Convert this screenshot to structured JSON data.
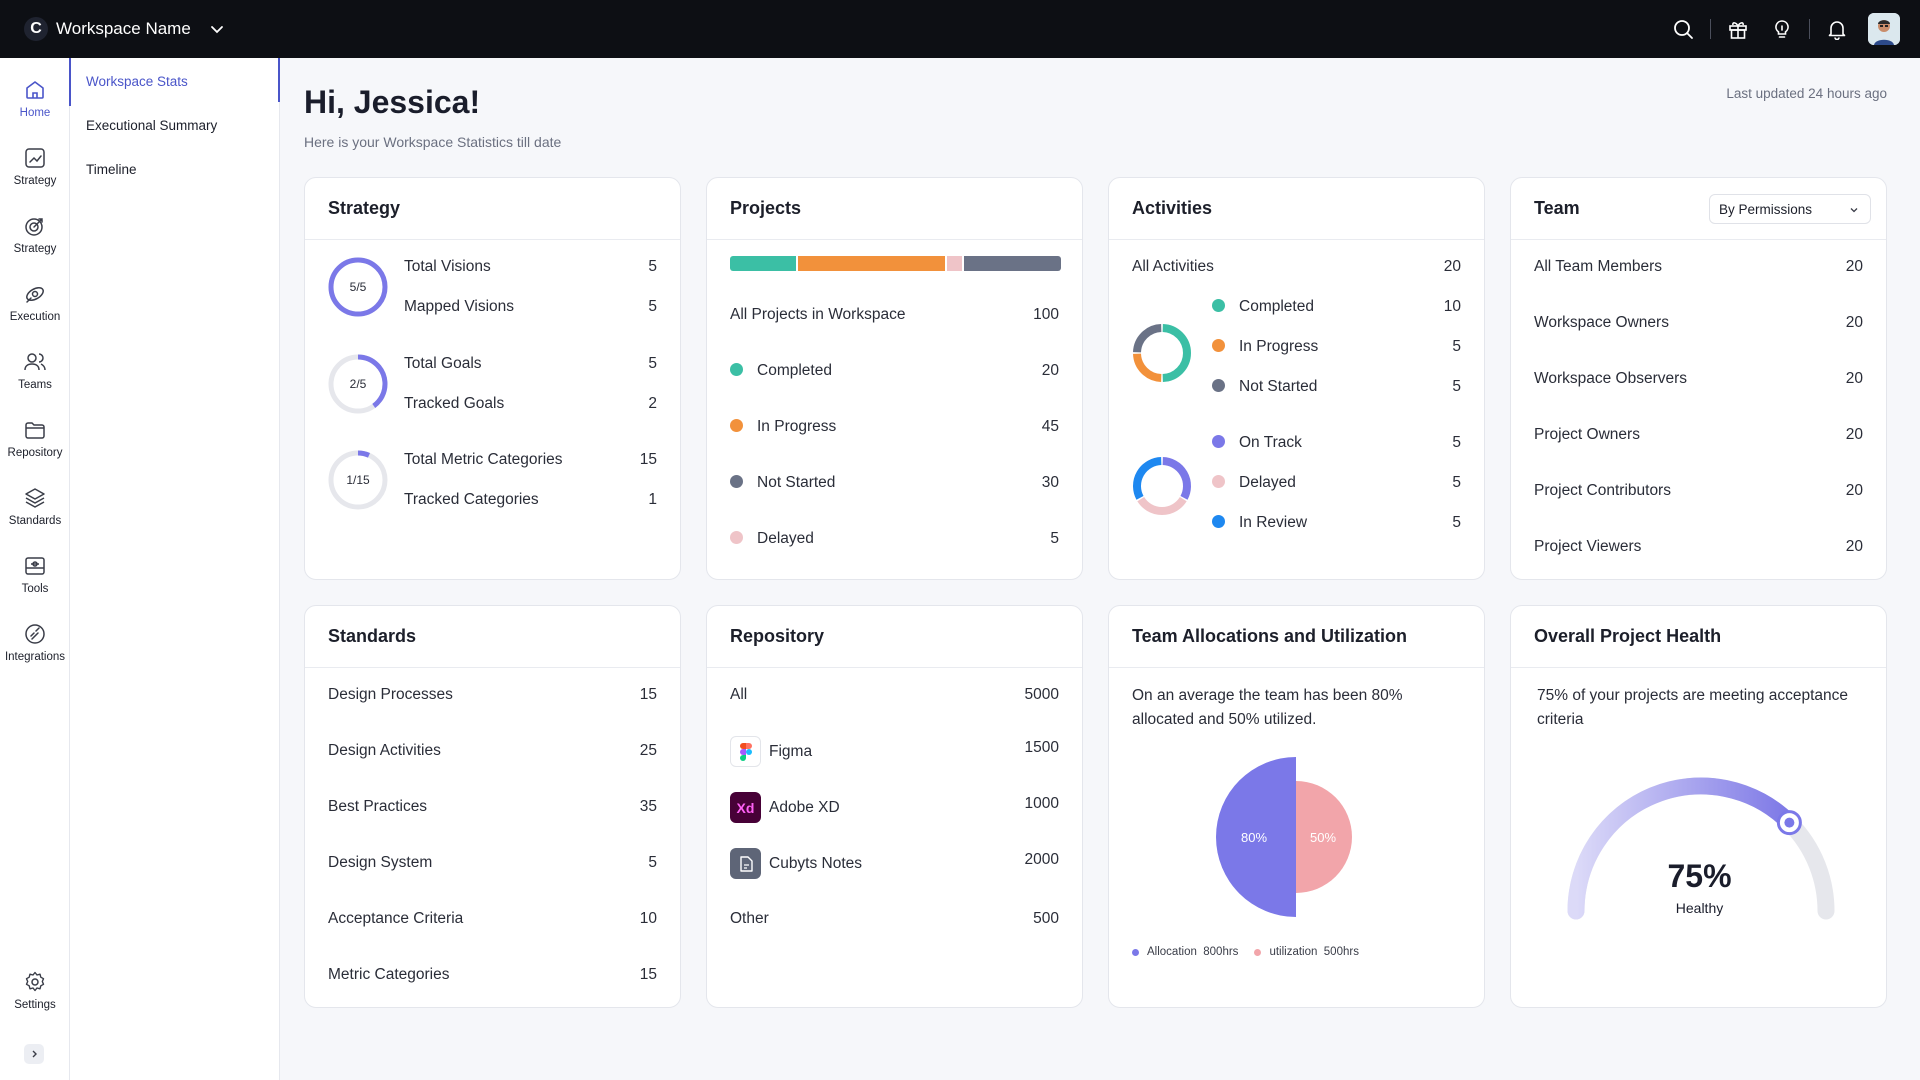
{
  "topbar": {
    "logo_letter": "C",
    "workspace_name": "Workspace Name",
    "icons": [
      "search-icon",
      "gift-icon",
      "lightbulb-icon",
      "bell-icon",
      "avatar"
    ]
  },
  "rail": {
    "items": [
      {
        "label": "Home",
        "icon": "home-icon",
        "active": true
      },
      {
        "label": "Strategy",
        "icon": "chart-icon"
      },
      {
        "label": "Strategy",
        "icon": "target-icon"
      },
      {
        "label": "Execution",
        "icon": "rocket-icon"
      },
      {
        "label": "Teams",
        "icon": "users-icon"
      },
      {
        "label": "Repository",
        "icon": "folder-icon"
      },
      {
        "label": "Standards",
        "icon": "layers-icon"
      },
      {
        "label": "Tools",
        "icon": "toolbox-icon"
      },
      {
        "label": "Integrations",
        "icon": "integrations-icon"
      }
    ],
    "settings_label": "Settings"
  },
  "subnav": {
    "items": [
      "Workspace Stats",
      "Executional Summary",
      "Timeline"
    ]
  },
  "header": {
    "greeting": "Hi, Jessica!",
    "subtitle": "Here is your Workspace Statistics till date",
    "updated": "Last updated 24 hours ago"
  },
  "strategy": {
    "title": "Strategy",
    "groups": [
      {
        "ring": "5/5",
        "fraction": 1.0,
        "rows": [
          {
            "label": "Total Visions",
            "value": "5"
          },
          {
            "label": "Mapped Visions",
            "value": "5"
          }
        ]
      },
      {
        "ring": "2/5",
        "fraction": 0.4,
        "rows": [
          {
            "label": "Total Goals",
            "value": "5"
          },
          {
            "label": "Tracked Goals",
            "value": "2"
          }
        ]
      },
      {
        "ring": "1/15",
        "fraction": 0.0667,
        "rows": [
          {
            "label": "Total Metric Categories",
            "value": "15"
          },
          {
            "label": "Tracked Categories",
            "value": "1"
          }
        ]
      }
    ]
  },
  "projects": {
    "title": "Projects",
    "bar": [
      {
        "value": 20,
        "color": "#3bbfa5"
      },
      {
        "value": 45,
        "color": "#f2913b"
      },
      {
        "value": 5,
        "color": "#efc4c8"
      },
      {
        "value": 30,
        "color": "#6a7286"
      }
    ],
    "total_label": "All Projects in Workspace",
    "total_value": "100",
    "rows": [
      {
        "label": "Completed",
        "value": "20",
        "color": "#3bbfa5"
      },
      {
        "label": "In Progress",
        "value": "45",
        "color": "#f2913b"
      },
      {
        "label": "Not Started",
        "value": "30",
        "color": "#6a7286"
      },
      {
        "label": "Delayed",
        "value": "5",
        "color": "#efc4c8"
      }
    ]
  },
  "activities": {
    "title": "Activities",
    "total_label": "All Activities",
    "total_value": "20",
    "group1": [
      {
        "label": "Completed",
        "value": "10",
        "color": "#3bbfa5"
      },
      {
        "label": "In Progress",
        "value": "5",
        "color": "#f2913b"
      },
      {
        "label": "Not Started",
        "value": "5",
        "color": "#6a7286"
      }
    ],
    "group2": [
      {
        "label": "On Track",
        "value": "5",
        "color": "#7b78e8"
      },
      {
        "label": "Delayed",
        "value": "5",
        "color": "#efc4c8"
      },
      {
        "label": "In Review",
        "value": "5",
        "color": "#1e88f0"
      }
    ]
  },
  "team": {
    "title": "Team",
    "select": "By Permissions",
    "rows": [
      {
        "label": "All Team Members",
        "value": "20"
      },
      {
        "label": "Workspace Owners",
        "value": "20"
      },
      {
        "label": "Workspace Observers",
        "value": "20"
      },
      {
        "label": "Project Owners",
        "value": "20"
      },
      {
        "label": "Project Contributors",
        "value": "20"
      },
      {
        "label": "Project Viewers",
        "value": "20"
      }
    ]
  },
  "standards": {
    "title": "Standards",
    "rows": [
      {
        "label": "Design Processes",
        "value": "15"
      },
      {
        "label": "Design Activities",
        "value": "25"
      },
      {
        "label": "Best Practices",
        "value": "35"
      },
      {
        "label": "Design System",
        "value": "5"
      },
      {
        "label": "Acceptance Criteria",
        "value": "10"
      },
      {
        "label": "Metric Categories",
        "value": "15"
      }
    ]
  },
  "repository": {
    "title": "Repository",
    "all_label": "All",
    "all_value": "5000",
    "tools": [
      {
        "label": "Figma",
        "value": "1500",
        "icon": "figma-icon"
      },
      {
        "label": "Adobe XD",
        "value": "1000",
        "icon": "adobe-xd-icon",
        "icon_text": "Xd"
      },
      {
        "label": "Cubyts Notes",
        "value": "2000",
        "icon": "notes-icon"
      }
    ],
    "other_label": "Other",
    "other_value": "500"
  },
  "allocation": {
    "title": "Team Allocations and Utilization",
    "text": "On an average the team has been 80% allocated and 50% utilized.",
    "left_label": "80%",
    "right_label": "50%",
    "left_color": "#7b78e8",
    "right_color": "#f2a5aa",
    "legend": [
      {
        "label": "Allocation",
        "value": "800hrs",
        "color": "#7b78e8"
      },
      {
        "label": "utilization",
        "value": "500hrs",
        "color": "#f2a5aa"
      }
    ]
  },
  "health": {
    "title": "Overall Project Health",
    "text": "75% of your projects are meeting acceptance criteria",
    "percent": "75%",
    "status": "Healthy",
    "fraction": 0.75
  }
}
